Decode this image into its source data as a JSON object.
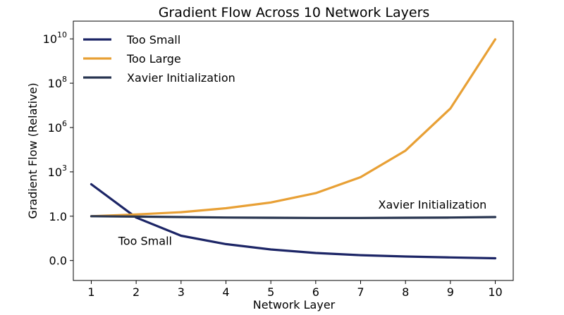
{
  "chart_data": {
    "type": "line",
    "title": "Gradient Flow Across 10 Network Layers",
    "xlabel": "Network Layer",
    "ylabel": "Gradient Flow (Relative)",
    "x": [
      1,
      2,
      3,
      4,
      5,
      6,
      7,
      8,
      9,
      10
    ],
    "xlim": [
      0.6,
      10.4
    ],
    "xticks": [
      "1",
      "2",
      "3",
      "4",
      "5",
      "6",
      "7",
      "8",
      "9",
      "10"
    ],
    "yticks": [
      {
        "base": "0.0",
        "exp": ""
      },
      {
        "base": "1.0",
        "exp": ""
      },
      {
        "base": "10",
        "exp": "3"
      },
      {
        "base": "10",
        "exp": "6"
      },
      {
        "base": "10",
        "exp": "8"
      },
      {
        "base": "10",
        "exp": "10"
      }
    ],
    "ylim_index": [
      -0.45,
      5.4
    ],
    "series": [
      {
        "name": "Too Small",
        "color": "#1c2566",
        "values_index": [
          1.72,
          0.97,
          0.56,
          0.37,
          0.25,
          0.17,
          0.12,
          0.09,
          0.07,
          0.05
        ]
      },
      {
        "name": "Too Large",
        "color": "#e8a035",
        "values_index": [
          1.0,
          1.04,
          1.09,
          1.18,
          1.31,
          1.52,
          1.88,
          2.48,
          3.43,
          4.99
        ]
      },
      {
        "name": "Xavier Initialization",
        "color": "#283550",
        "values_index": [
          1.0,
          0.99,
          0.98,
          0.97,
          0.965,
          0.96,
          0.96,
          0.965,
          0.97,
          0.98
        ]
      }
    ],
    "legend": {
      "position": "top-left",
      "entries": [
        "Too Small",
        "Too Large",
        "Xavier Initialization"
      ]
    },
    "annotations": [
      {
        "text": "Too Small",
        "x": 2.2,
        "y_index": 0.35
      },
      {
        "text": "Xavier Initialization",
        "x": 8.6,
        "y_index": 1.17
      }
    ],
    "grid": false
  }
}
